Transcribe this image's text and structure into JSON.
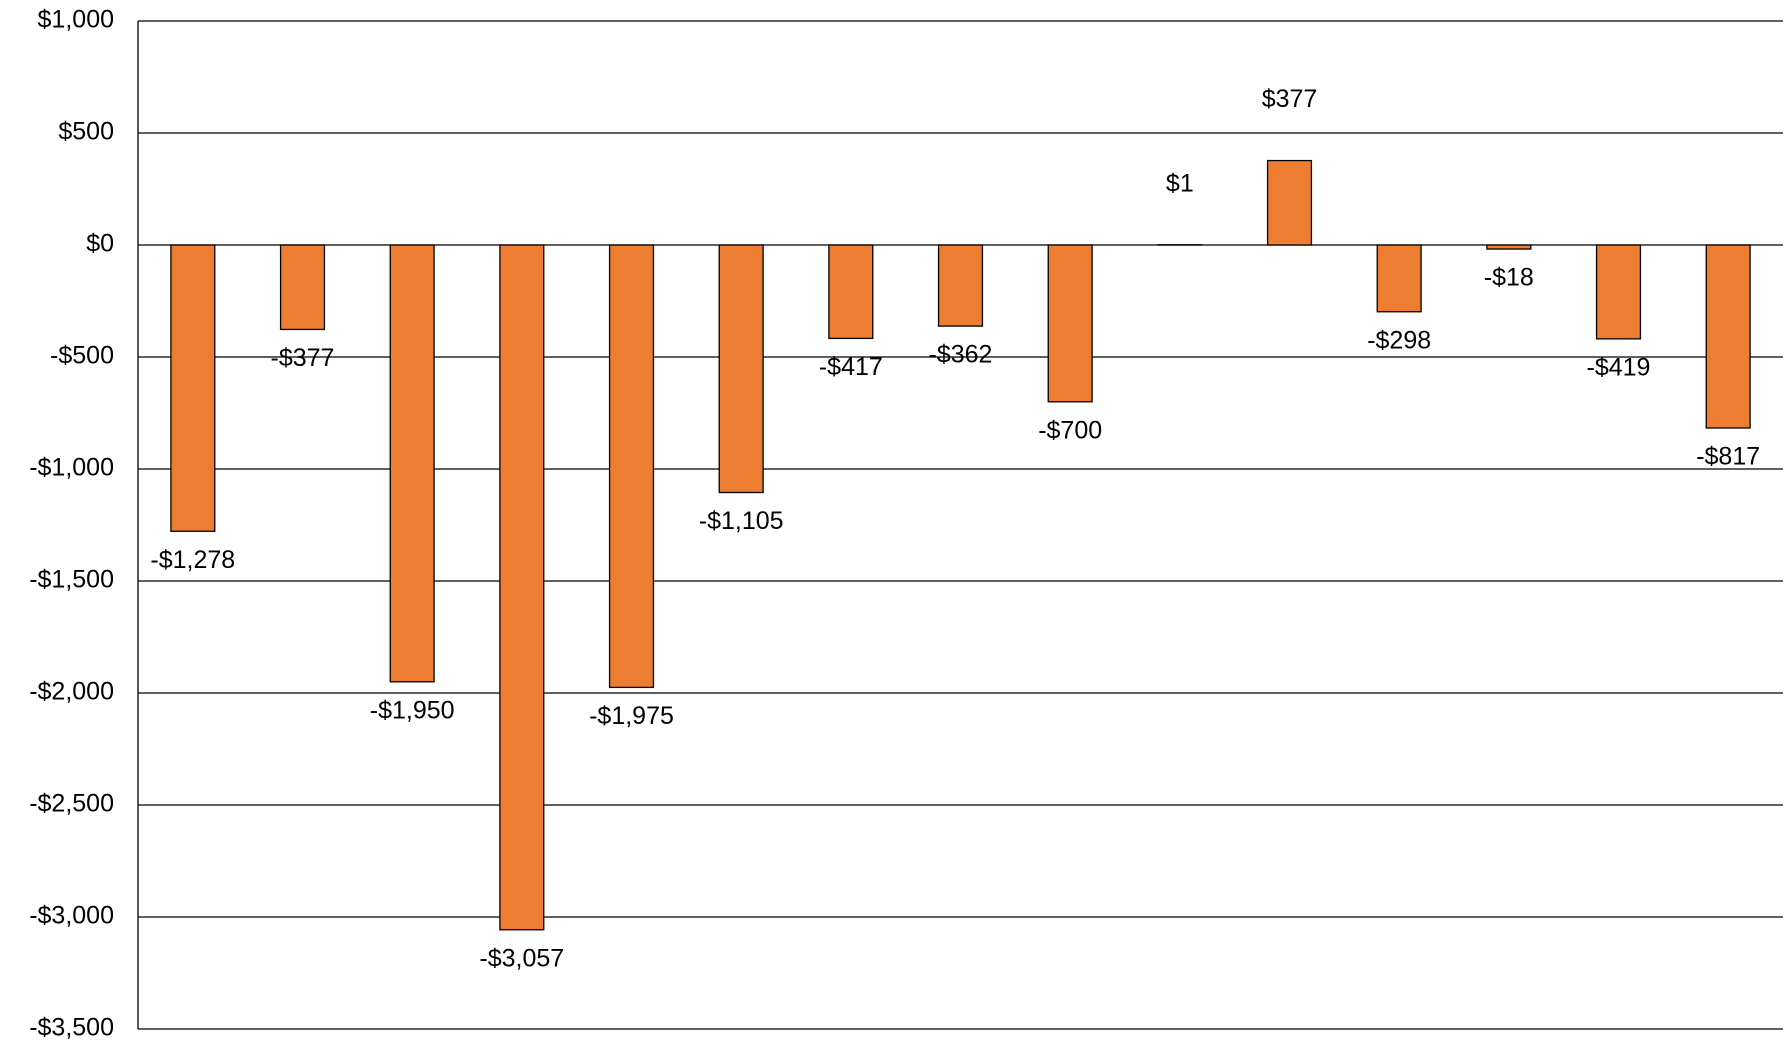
{
  "chart_data": {
    "type": "bar",
    "categories": [
      null,
      null,
      null,
      null,
      null,
      null,
      null,
      null,
      null,
      null,
      null,
      null,
      null,
      null,
      null
    ],
    "values": [
      -1278,
      -377,
      -1950,
      -3057,
      -1975,
      -1105,
      -417,
      -362,
      -700,
      1,
      377,
      -298,
      -18,
      -419,
      -817
    ],
    "value_labels": [
      "-$1,278",
      "-$377",
      "-$1,950",
      "-$3,057",
      "-$1,975",
      "-$1,105",
      "-$417",
      "-$362",
      "-$700",
      "$1",
      "$377",
      "-$298",
      "-$18",
      "-$419",
      "-$817"
    ],
    "color": "#ed7d31",
    "ylim": [
      -3500,
      1000
    ],
    "yticks": [
      {
        "value": -3500,
        "label": "-$3,500"
      },
      {
        "value": -3000,
        "label": "-$3,000"
      },
      {
        "value": -2500,
        "label": "-$2,500"
      },
      {
        "value": -2000,
        "label": "-$2,000"
      },
      {
        "value": -1500,
        "label": "-$1,500"
      },
      {
        "value": -1000,
        "label": "-$1,000"
      },
      {
        "value": -500,
        "label": "-$500"
      },
      {
        "value": 0,
        "label": "$0"
      },
      {
        "value": 500,
        "label": "$500"
      },
      {
        "value": 1000,
        "label": "$1,000"
      }
    ],
    "grid": true
  }
}
